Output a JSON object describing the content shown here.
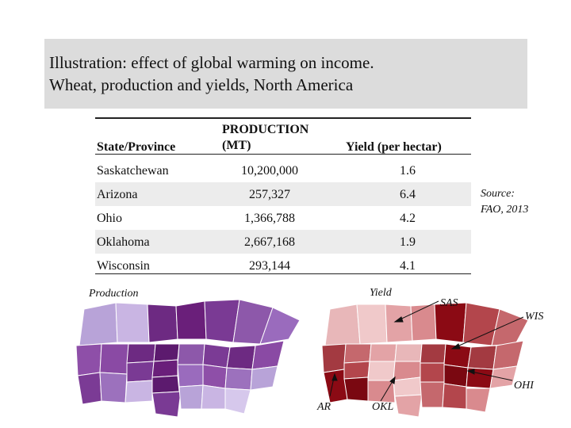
{
  "title": {
    "line1": "Illustration: effect of global warming on income.",
    "line2": "Wheat, production and yields, North America"
  },
  "table": {
    "headers": {
      "state": "State/Province",
      "production_line1": "PRODUCTION",
      "production_line2": "(MT)",
      "yield": "Yield (per hectar)"
    },
    "rows": [
      {
        "state": "Saskatchewan",
        "production": "10,200,000",
        "yield": "1.6"
      },
      {
        "state": "Arizona",
        "production": "257,327",
        "yield": "6.4"
      },
      {
        "state": "Ohio",
        "production": "1,366,788",
        "yield": "4.2"
      },
      {
        "state": "Oklahoma",
        "production": "2,667,168",
        "yield": "1.9"
      },
      {
        "state": "Wisconsin",
        "production": "293,144",
        "yield": "4.1"
      }
    ]
  },
  "source": {
    "line1": "Source:",
    "line2": "FAO, 2013"
  },
  "maps": {
    "production_label": "Production",
    "yield_label": "Yield",
    "callouts": {
      "sas": "SAS",
      "wis": "WIS",
      "ohi": "OHI",
      "ar": "AR",
      "okl": "OKL"
    }
  },
  "colors": {
    "title_bg": "#dcdcdc",
    "production_map": "#6a1f7a",
    "yield_map": "#8b0a14"
  }
}
